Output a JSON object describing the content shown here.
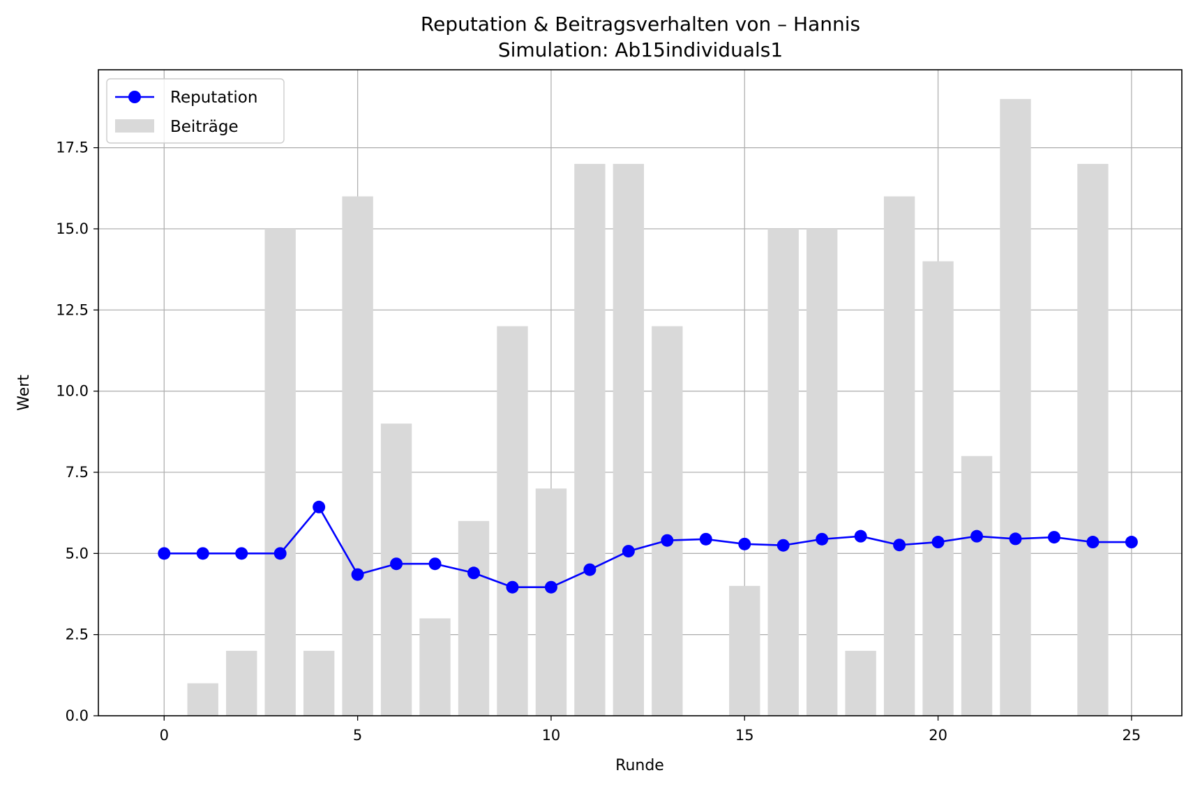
{
  "chart_data": {
    "type": "bar+line",
    "title": "Reputation & Beitragsverhalten von – Hannis",
    "subtitle": "Simulation: Ab15individuals1",
    "xlabel": "Runde",
    "ylabel": "Wert",
    "xlim": [
      -1.7,
      26.3
    ],
    "ylim": [
      0,
      19.9
    ],
    "xticks": [
      0,
      5,
      10,
      15,
      20,
      25
    ],
    "yticks": [
      0.0,
      2.5,
      5.0,
      7.5,
      10.0,
      12.5,
      15.0,
      17.5
    ],
    "xtick_labels": [
      "0",
      "5",
      "10",
      "15",
      "20",
      "25"
    ],
    "ytick_labels": [
      "0.0",
      "2.5",
      "5.0",
      "7.5",
      "10.0",
      "12.5",
      "15.0",
      "17.5"
    ],
    "grid": true,
    "legend_position": "top-left",
    "legend": [
      "Reputation",
      "Beiträge"
    ],
    "x": [
      0,
      1,
      2,
      3,
      4,
      5,
      6,
      7,
      8,
      9,
      10,
      11,
      12,
      13,
      14,
      15,
      16,
      17,
      18,
      19,
      20,
      21,
      22,
      23,
      24,
      25
    ],
    "series": [
      {
        "name": "Reputation",
        "kind": "line",
        "color": "#0000ff",
        "marker": "circle",
        "values": [
          5.0,
          5.0,
          5.0,
          5.0,
          6.43,
          4.35,
          4.68,
          4.68,
          4.4,
          3.96,
          3.96,
          4.5,
          5.07,
          5.4,
          5.44,
          5.29,
          5.25,
          5.44,
          5.53,
          5.26,
          5.35,
          5.53,
          5.45,
          5.5,
          5.35,
          5.35
        ]
      },
      {
        "name": "Beiträge",
        "kind": "bar",
        "color": "#d9d9d9",
        "values": [
          0,
          1,
          2,
          15,
          2,
          16,
          9,
          3,
          6,
          12,
          7,
          17,
          17,
          12,
          0,
          4,
          15,
          15,
          2,
          16,
          14,
          8,
          19,
          0,
          17,
          0
        ]
      }
    ]
  }
}
